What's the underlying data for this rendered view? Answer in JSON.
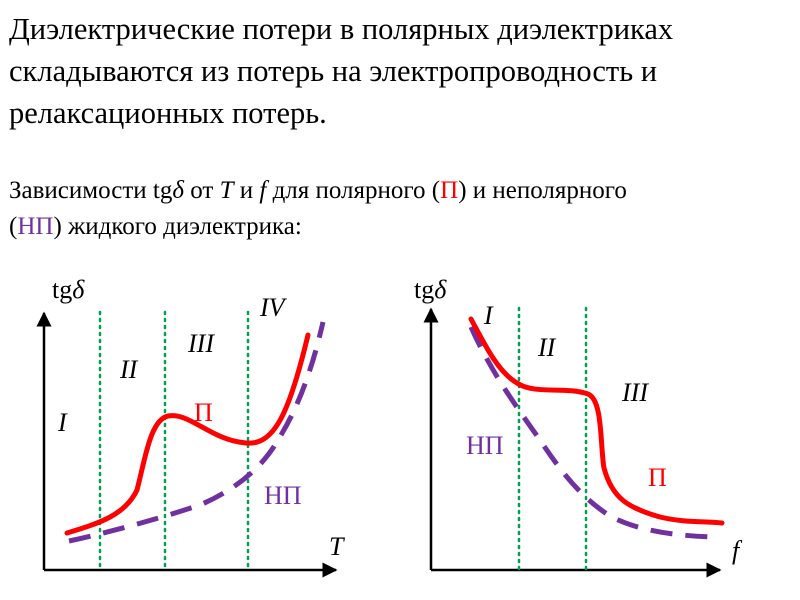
{
  "heading": {
    "line1": "Диэлектрические потери в полярных диэлектриках",
    "line2": "складываются из потерь на электропроводность и",
    "line3": "релаксационных потерь."
  },
  "subtitle": {
    "p1": "Зависимости tg",
    "delta": "δ",
    "p2": " от ",
    "T": "T",
    "p3": " и ",
    "f": "f",
    "p4": " для полярного (",
    "P": "П",
    "p5": ") и неполярного",
    "p6": "(",
    "NP": "НП",
    "p7": ") жидкого диэлектрика:"
  },
  "left_plot": {
    "y_axis_label": "tg",
    "y_axis_delta": "δ",
    "x_axis_label": "T",
    "regions": [
      "I",
      "II",
      "III",
      "IV"
    ],
    "curve_polar_label": "П",
    "curve_nonpolar_label": "НП"
  },
  "right_plot": {
    "y_axis_label": "tg",
    "y_axis_delta": "δ",
    "x_axis_label": "f",
    "regions": [
      "I",
      "II",
      "III"
    ],
    "curve_polar_label": "П",
    "curve_nonpolar_label": "НП"
  },
  "colors": {
    "polar": "#ff0000",
    "nonpolar": "#7030a0",
    "region_divider": "#00a050",
    "axis": "#000000"
  }
}
